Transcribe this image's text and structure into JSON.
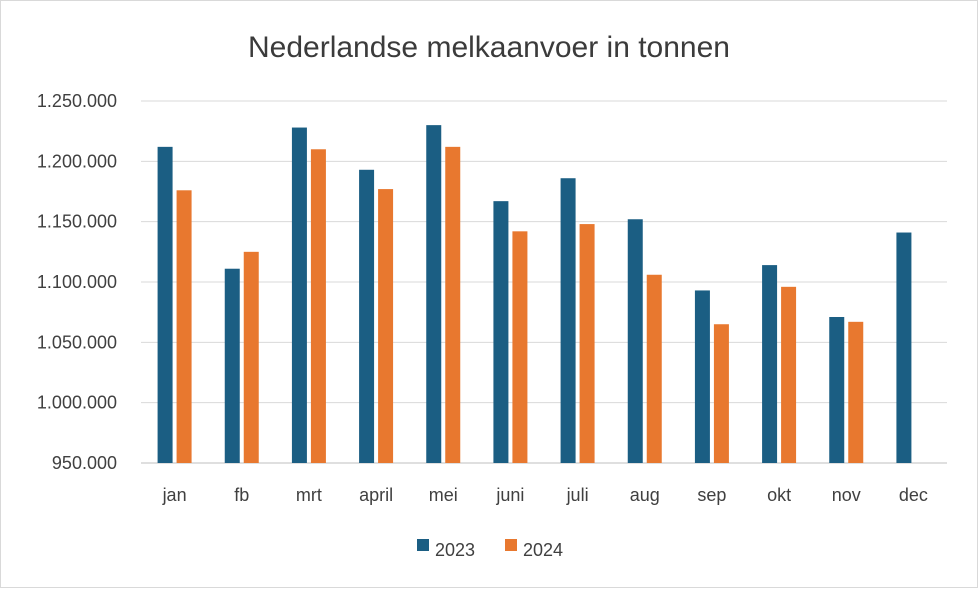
{
  "chart_data": {
    "type": "bar",
    "title": "Nederlandse melkaanvoer in tonnen",
    "xlabel": "",
    "ylabel": "",
    "categories": [
      "jan",
      "fb",
      "mrt",
      "april",
      "mei",
      "juni",
      "juli",
      "aug",
      "sep",
      "okt",
      "nov",
      "dec"
    ],
    "series": [
      {
        "name": "2023",
        "color": "#1b5e83",
        "values": [
          1212000,
          1111000,
          1228000,
          1193000,
          1230000,
          1167000,
          1186000,
          1152000,
          1093000,
          1114000,
          1071000,
          1141000
        ]
      },
      {
        "name": "2024",
        "color": "#e8782f",
        "values": [
          1176000,
          1125000,
          1210000,
          1177000,
          1212000,
          1142000,
          1148000,
          1106000,
          1065000,
          1096000,
          1067000,
          null
        ]
      }
    ],
    "ylim": [
      950000,
      1250000
    ],
    "yticks": [
      "950.000",
      "1.000.000",
      "1.050.000",
      "1.100.000",
      "1.150.000",
      "1.200.000",
      "1.250.000"
    ],
    "grid": true,
    "legend_position": "bottom"
  }
}
